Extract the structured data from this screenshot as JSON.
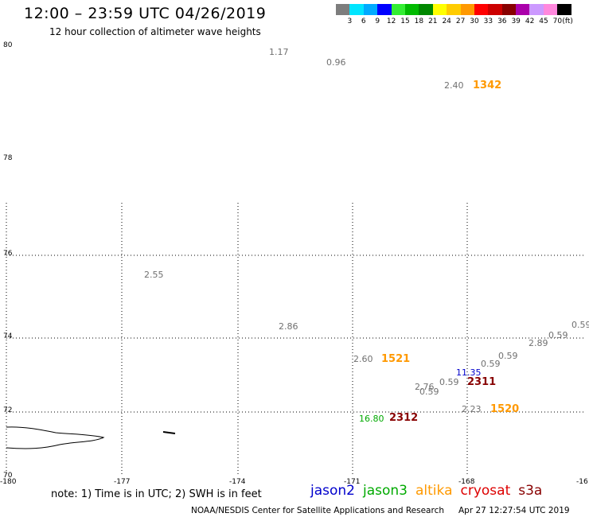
{
  "title": "12:00 – 23:59 UTC 04/26/2019",
  "subtitle": "12 hour collection of altimeter wave heights",
  "color_scale": {
    "colors": [
      "#7d7d7d",
      "#00e5ff",
      "#00aaff",
      "#0000ff",
      "#33ee33",
      "#00bb00",
      "#008800",
      "#ffff00",
      "#ffcc00",
      "#ff9900",
      "#ff0000",
      "#cc0000",
      "#880000",
      "#aa00aa",
      "#cc99ff",
      "#ff88dd",
      "#000000"
    ],
    "labels": [
      "3",
      "6",
      "9",
      "12",
      "15",
      "18",
      "21",
      "24",
      "27",
      "30",
      "33",
      "36",
      "39",
      "42",
      "45",
      "70",
      "(ft)"
    ]
  },
  "lat_labels": [
    "80",
    "78",
    "76",
    "74",
    "72",
    "70"
  ],
  "lon_labels": [
    "-180",
    "-177",
    "-174",
    "-171",
    "-168",
    "-16"
  ],
  "wave_heights": [
    {
      "v": "1.17"
    },
    {
      "v": "0.96"
    },
    {
      "v": "2.40"
    },
    {
      "v": "2.55"
    },
    {
      "v": "2.86"
    },
    {
      "v": "2.60"
    },
    {
      "v": "0.59"
    },
    {
      "v": "0.59"
    },
    {
      "v": "2.89"
    },
    {
      "v": "0.59"
    },
    {
      "v": "0.59"
    },
    {
      "v": "2.76"
    },
    {
      "v": "0.59"
    },
    {
      "v": "0.59"
    },
    {
      "v": "2.23"
    },
    {
      "v": "16.80",
      "color": "#00aa00"
    },
    {
      "v": "11.35",
      "color": "#0000cc"
    }
  ],
  "pass_numbers": [
    {
      "v": "1342",
      "color": "#ff9900"
    },
    {
      "v": "1521",
      "color": "#ff9900"
    },
    {
      "v": "2311",
      "color": "#880000"
    },
    {
      "v": "1520",
      "color": "#ff9900"
    },
    {
      "v": "2312",
      "color": "#880000"
    }
  ],
  "note": "note: 1) Time is in UTC; 2) SWH is in feet",
  "satellites": [
    {
      "name": "jason2",
      "color": "#0000cc"
    },
    {
      "name": "jason3",
      "color": "#00aa00"
    },
    {
      "name": "altika",
      "color": "#ff9900"
    },
    {
      "name": "cryosat",
      "color": "#dd0000"
    },
    {
      "name": "s3a",
      "color": "#880000"
    }
  ],
  "footer": {
    "credit": "NOAA/NESDIS Center for Satellite Applications and Research",
    "timestamp": "Apr 27 12:27:54 UTC 2019"
  }
}
